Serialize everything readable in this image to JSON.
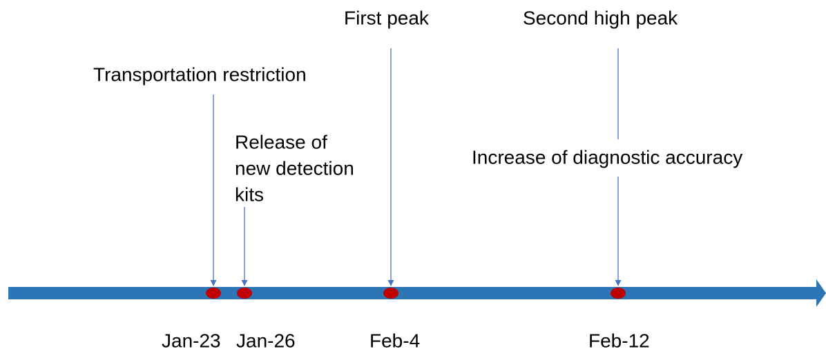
{
  "events": [
    {
      "date": "Jan-23",
      "labels": [
        "Transportation restriction"
      ]
    },
    {
      "date": "Jan-26",
      "labels": [
        "Release of",
        "new detection",
        "kits"
      ]
    },
    {
      "date": "Feb-4",
      "labels": [
        "First peak"
      ]
    },
    {
      "date": "Feb-12",
      "labels": [
        "Second high peak",
        "Increase of diagnostic accuracy"
      ]
    }
  ]
}
